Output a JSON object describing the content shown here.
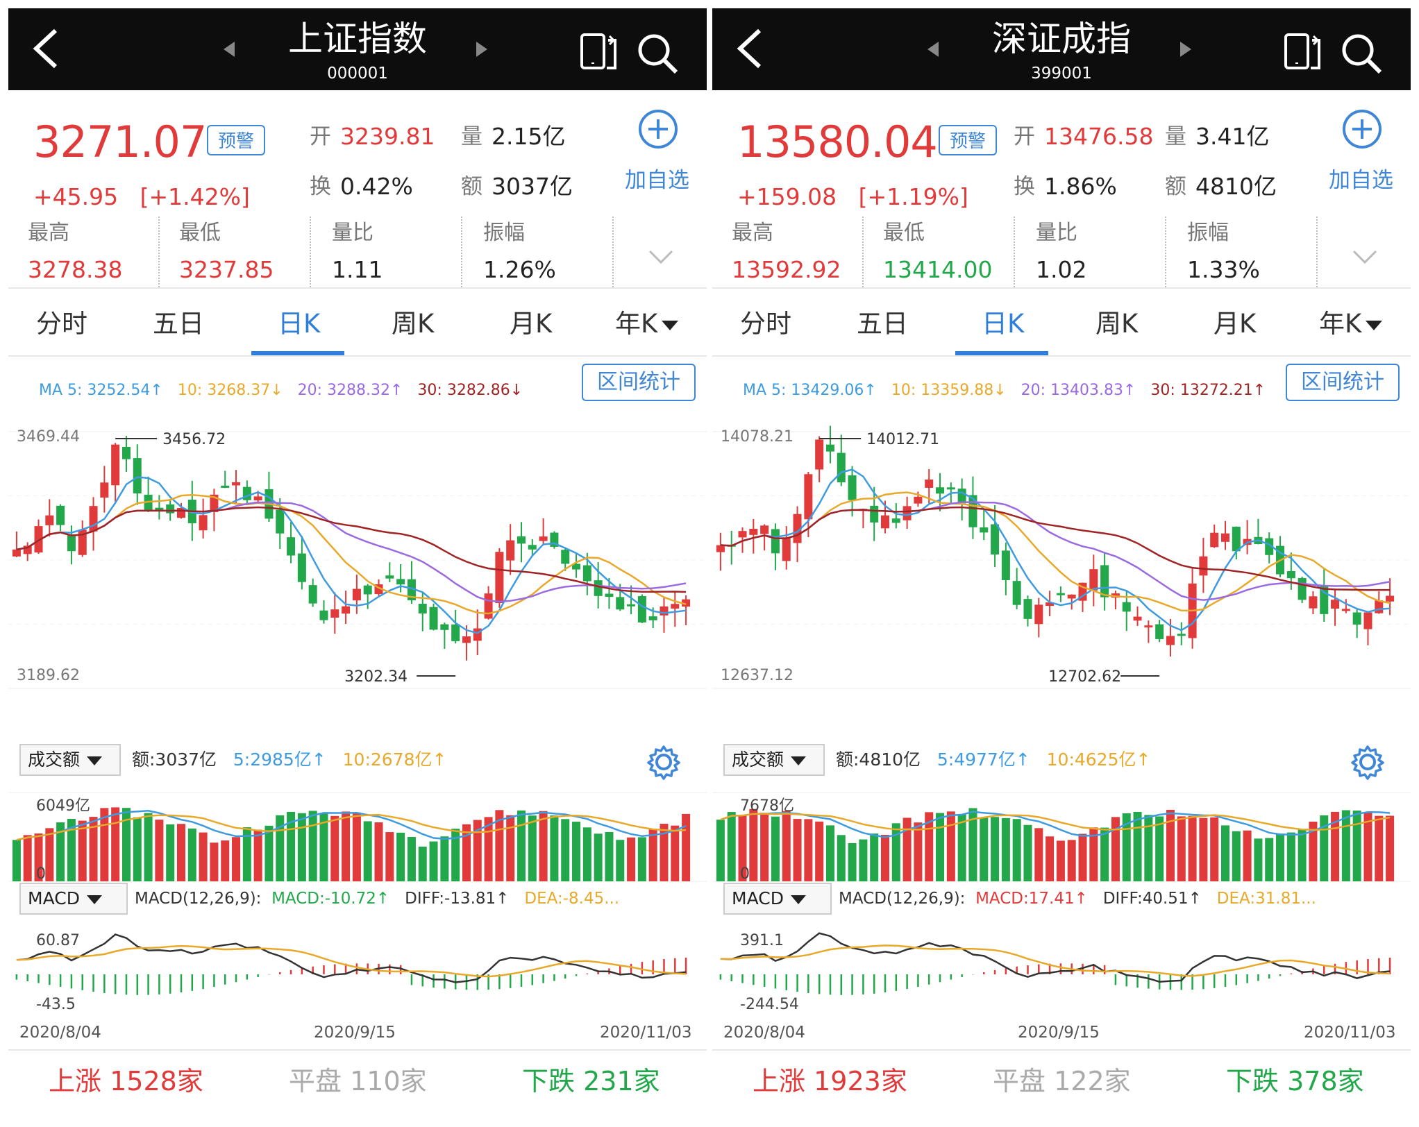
{
  "panels": [
    {
      "title": "上证指数",
      "code": "000001",
      "price": "3271.07",
      "alert_label": "预警",
      "change": "+45.95",
      "change_pct": "[+1.42%]",
      "open_label": "开",
      "open": "3239.81",
      "volume_label": "量",
      "volume": "2.15亿",
      "turnover_label": "换",
      "turnover": "0.42%",
      "amount_label": "额",
      "amount": "3037亿",
      "add_watch_label": "加自选",
      "stats": [
        {
          "label": "最高",
          "value": "3278.38",
          "color": "red"
        },
        {
          "label": "最低",
          "value": "3237.85",
          "color": "red"
        },
        {
          "label": "量比",
          "value": "1.11",
          "color": "dark"
        },
        {
          "label": "振幅",
          "value": "1.26%",
          "color": "dark"
        }
      ],
      "tabs": [
        "分时",
        "五日",
        "日K",
        "周K",
        "月K",
        "年K"
      ],
      "active_tab": 2,
      "ma": {
        "ma5": "MA 5: 3252.54↑",
        "ma10": "10: 3268.37↓",
        "ma20": "20: 3288.32↑",
        "ma30": "30: 3282.86↓"
      },
      "range_stat_label": "区间统计",
      "kchart": {
        "top_label": "3469.44",
        "bottom_label": "3189.62",
        "high_marker": "3456.72",
        "low_marker": "3202.34",
        "ymax": 3469.44,
        "ymin": 3189.62,
        "seed": 11
      },
      "volume_selector": "成交额",
      "volume_line": {
        "amount": "额:3037亿",
        "ma5": "5:2985亿↑",
        "ma10": "10:2678亿↑"
      },
      "vol_top_label": "6049亿",
      "vol_zero_label": "0",
      "macd_selector": "MACD",
      "macd_line": {
        "params": "MACD(12,26,9):",
        "macd": "MACD:-10.72↑",
        "macd_color": "green",
        "diff": "DIFF:-13.81↑",
        "dea": "DEA:-8.45..."
      },
      "macd_top_label": "60.87",
      "macd_bottom_label": "-43.5",
      "dates": [
        "2020/8/04",
        "2020/9/15",
        "2020/11/03"
      ],
      "breadth": {
        "up_label": "上涨",
        "up": "1528家",
        "flat_label": "平盘",
        "flat": "110家",
        "down_label": "下跌",
        "down": "231家"
      }
    },
    {
      "title": "深证成指",
      "code": "399001",
      "price": "13580.04",
      "alert_label": "预警",
      "change": "+159.08",
      "change_pct": "[+1.19%]",
      "open_label": "开",
      "open": "13476.58",
      "volume_label": "量",
      "volume": "3.41亿",
      "turnover_label": "换",
      "turnover": "1.86%",
      "amount_label": "额",
      "amount": "4810亿",
      "add_watch_label": "加自选",
      "stats": [
        {
          "label": "最高",
          "value": "13592.92",
          "color": "red"
        },
        {
          "label": "最低",
          "value": "13414.00",
          "color": "green"
        },
        {
          "label": "量比",
          "value": "1.02",
          "color": "dark"
        },
        {
          "label": "振幅",
          "value": "1.33%",
          "color": "dark"
        }
      ],
      "tabs": [
        "分时",
        "五日",
        "日K",
        "周K",
        "月K",
        "年K"
      ],
      "active_tab": 2,
      "ma": {
        "ma5": "MA 5: 13429.06↑",
        "ma10": "10: 13359.88↓",
        "ma20": "20: 13403.83↑",
        "ma30": "30: 13272.21↑"
      },
      "range_stat_label": "区间统计",
      "kchart": {
        "top_label": "14078.21",
        "bottom_label": "12637.12",
        "high_marker": "14012.71",
        "low_marker": "12702.62",
        "ymax": 14078.21,
        "ymin": 12637.12,
        "seed": 29
      },
      "volume_selector": "成交额",
      "volume_line": {
        "amount": "额:4810亿",
        "ma5": "5:4977亿↑",
        "ma10": "10:4625亿↑"
      },
      "vol_top_label": "7678亿",
      "vol_zero_label": "0",
      "macd_selector": "MACD",
      "macd_line": {
        "params": "MACD(12,26,9):",
        "macd": "MACD:17.41↑",
        "macd_color": "red",
        "diff": "DIFF:40.51↑",
        "dea": "DEA:31.81..."
      },
      "macd_top_label": "391.1",
      "macd_bottom_label": "-244.54",
      "dates": [
        "2020/8/04",
        "2020/9/15",
        "2020/11/03"
      ],
      "breadth": {
        "up_label": "上涨",
        "up": "1923家",
        "flat_label": "平盘",
        "flat": "122家",
        "down_label": "下跌",
        "down": "378家"
      }
    }
  ],
  "colors": {
    "up": "#e03a3a",
    "down": "#22a84b",
    "accent": "#2f7fd8",
    "ma5": "#3f9be0",
    "ma10": "#e8a92a",
    "ma20": "#9a6ae0",
    "ma30": "#a12424"
  }
}
